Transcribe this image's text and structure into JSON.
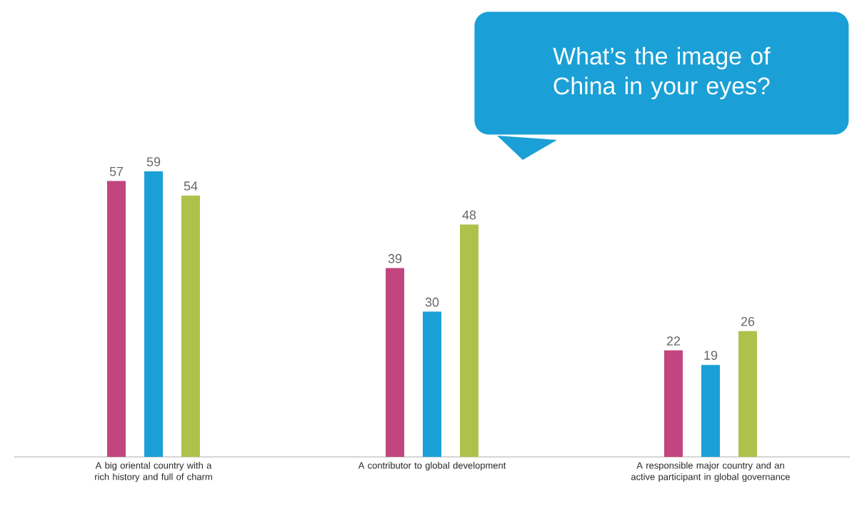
{
  "chart_data": {
    "type": "bar",
    "title": "What’s the image of China in your eyes?",
    "categories": [
      "A big oriental country with a rich history and full of charm",
      "A contributor to global development",
      "A responsible major country and an active participant in global governance"
    ],
    "series": [
      {
        "color": "#c2457f",
        "values": [
          57,
          39,
          22
        ]
      },
      {
        "color": "#1aa0d6",
        "values": [
          59,
          30,
          19
        ]
      },
      {
        "color": "#aec24b",
        "values": [
          54,
          48,
          26
        ]
      }
    ],
    "data_labels": true
  }
}
